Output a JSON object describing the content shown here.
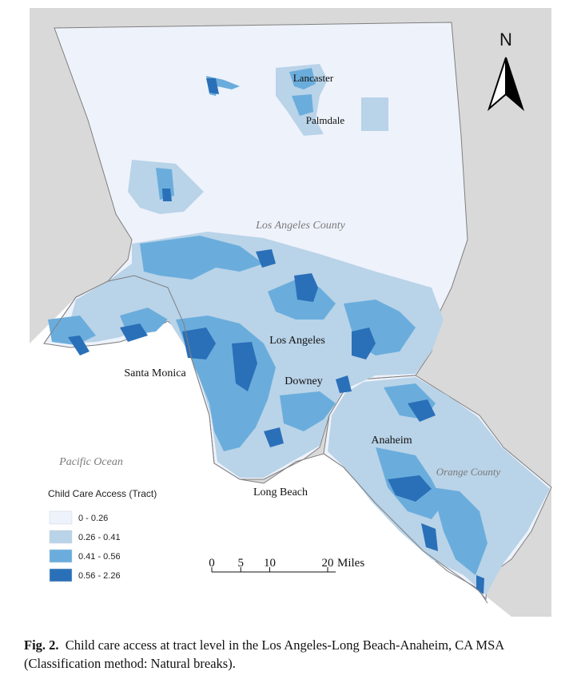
{
  "caption": {
    "figure_label": "Fig. 2.",
    "text": "Child care access at tract level in the Los Angeles-Long Beach-Anaheim, CA MSA (Classification method: Natural breaks)."
  },
  "map": {
    "north_label": "N",
    "regions": [
      "Los Angeles County",
      "Orange County",
      "Pacific Ocean"
    ],
    "places": [
      "Lancaster",
      "Palmdale",
      "Los Angeles",
      "Santa Monica",
      "Downey",
      "Anaheim",
      "Long Beach"
    ]
  },
  "legend": {
    "title": "Child Care Access (Tract)",
    "classes": [
      {
        "label": "0 - 0.26",
        "color": "#eef2fb"
      },
      {
        "label": "0.26 - 0.41",
        "color": "#b9d3e8"
      },
      {
        "label": "0.41 - 0.56",
        "color": "#6aaddc"
      },
      {
        "label": "0.56 - 2.26",
        "color": "#2a70b8"
      }
    ]
  },
  "scale_bar": {
    "ticks": [
      "0",
      "5",
      "10",
      "20"
    ],
    "unit": "Miles"
  },
  "colors": {
    "land_background": "#d9d9d9",
    "ocean": "#ffffff",
    "outline": "#7f7f7f"
  }
}
